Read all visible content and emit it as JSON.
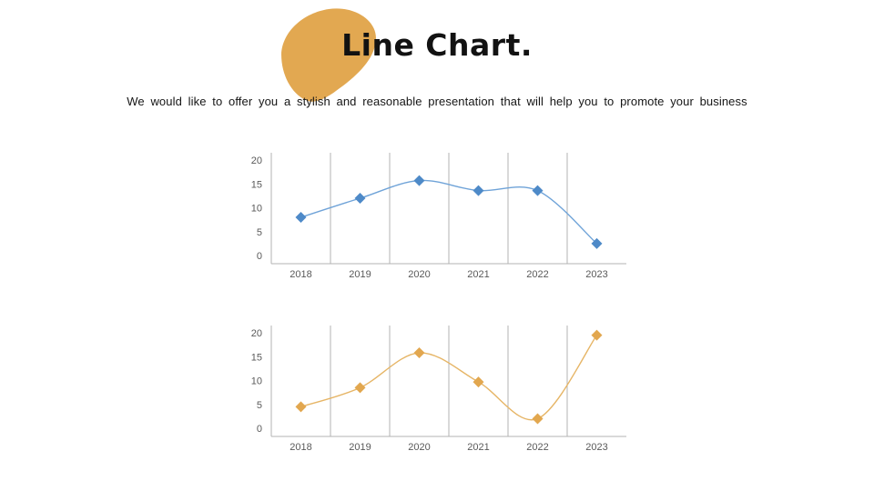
{
  "slide": {
    "title": "Line Chart.",
    "subtitle": "We would like to offer you a stylish and reasonable presentation that will help you to promote your business"
  },
  "decor": {
    "blob_color": "#E2A851"
  },
  "chart_data": [
    {
      "type": "line",
      "name": "blue-line-chart",
      "title": "",
      "categories": [
        "2018",
        "2019",
        "2020",
        "2021",
        "2022",
        "2023"
      ],
      "values": [
        8,
        12,
        15.7,
        13.6,
        13.6,
        2.5
      ],
      "ylim": [
        0,
        20
      ],
      "yticks": [
        0,
        5,
        10,
        15,
        20
      ],
      "xlabel": "",
      "ylabel": "",
      "legend": "none",
      "grid": "vertical",
      "smooth": true,
      "marker": "diamond",
      "line_color": "#6FA3D8",
      "marker_color": "#4E8AC8",
      "grid_color": "#B3B3B3",
      "tick_color": "#595959"
    },
    {
      "type": "line",
      "name": "gold-line-chart",
      "title": "",
      "categories": [
        "2018",
        "2019",
        "2020",
        "2021",
        "2022",
        "2023"
      ],
      "values": [
        4.5,
        8.5,
        15.8,
        9.7,
        2,
        19.5
      ],
      "ylim": [
        0,
        20
      ],
      "yticks": [
        0,
        5,
        10,
        15,
        20
      ],
      "xlabel": "",
      "ylabel": "",
      "legend": "none",
      "grid": "vertical",
      "smooth": true,
      "marker": "diamond",
      "line_color": "#E6B566",
      "marker_color": "#E2A74F",
      "grid_color": "#B3B3B3",
      "tick_color": "#595959"
    }
  ]
}
